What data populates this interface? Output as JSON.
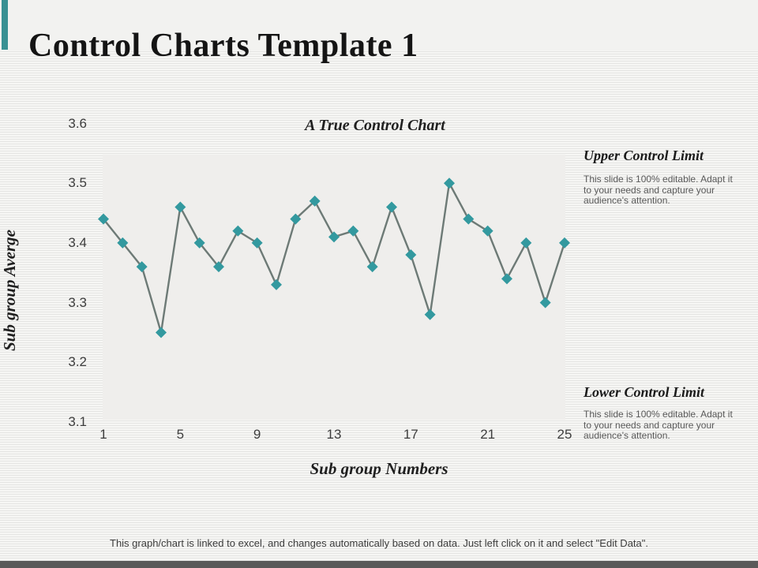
{
  "slide": {
    "title": "Control Charts Template 1",
    "footer_caption": "This graph/chart is linked to excel, and changes automatically based on data. Just left click on it and select \"Edit Data\"."
  },
  "annotations": {
    "upper": {
      "heading": "Upper Control Limit",
      "body": "This slide is 100% editable.  Adapt it to your needs and capture your audience's attention."
    },
    "lower": {
      "heading": "Lower Control Limit",
      "body": "This slide is 100% editable.  Adapt it to your needs and capture your audience's attention."
    }
  },
  "chart_data": {
    "type": "line",
    "title": "A True Control Chart",
    "xlabel": "Sub group Numbers",
    "ylabel": "Sub group Averge",
    "x": [
      1,
      2,
      3,
      4,
      5,
      6,
      7,
      8,
      9,
      10,
      11,
      12,
      13,
      14,
      15,
      16,
      17,
      18,
      19,
      20,
      21,
      22,
      23,
      24,
      25
    ],
    "values": [
      3.44,
      3.4,
      3.36,
      3.25,
      3.46,
      3.4,
      3.36,
      3.42,
      3.4,
      3.33,
      3.44,
      3.47,
      3.41,
      3.42,
      3.36,
      3.46,
      3.38,
      3.28,
      3.5,
      3.44,
      3.42,
      3.34,
      3.4,
      3.3,
      3.4
    ],
    "xticks": [
      1,
      5,
      9,
      13,
      17,
      21,
      25
    ],
    "yticks": [
      3.6,
      3.5,
      3.4,
      3.3,
      3.2,
      3.1
    ],
    "xlim": [
      1,
      25
    ],
    "ylim": [
      3.1,
      3.6
    ],
    "grid": false,
    "legend_position": "none",
    "marker": "diamond",
    "marker_color": "#33999f",
    "line_color": "#6d7a76"
  },
  "colors": {
    "accent_teal": "#389193",
    "bottom_bar": "#595959",
    "plot_fill": "#efeeec",
    "tick_text": "#3d3d3d"
  }
}
